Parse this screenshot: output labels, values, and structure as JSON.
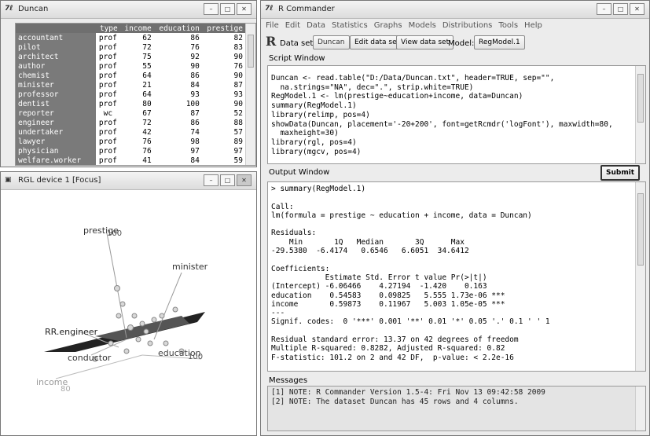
{
  "duncan_window": {
    "title": "Duncan",
    "columns": [
      "type",
      "income",
      "education",
      "prestige"
    ],
    "rows": [
      [
        "accountant",
        "prof",
        62,
        86,
        82
      ],
      [
        "pilot",
        "prof",
        72,
        76,
        83
      ],
      [
        "architect",
        "prof",
        75,
        92,
        90
      ],
      [
        "author",
        "prof",
        55,
        90,
        76
      ],
      [
        "chemist",
        "prof",
        64,
        86,
        90
      ],
      [
        "minister",
        "prof",
        21,
        84,
        87
      ],
      [
        "professor",
        "prof",
        64,
        93,
        93
      ],
      [
        "dentist",
        "prof",
        80,
        100,
        90
      ],
      [
        "reporter",
        "wc",
        67,
        87,
        52
      ],
      [
        "engineer",
        "prof",
        72,
        86,
        88
      ],
      [
        "undertaker",
        "prof",
        42,
        74,
        57
      ],
      [
        "lawyer",
        "prof",
        76,
        98,
        89
      ],
      [
        "physician",
        "prof",
        76,
        97,
        97
      ],
      [
        "welfare.worker",
        "prof",
        41,
        84,
        59
      ]
    ]
  },
  "rgl_window": {
    "title": "RGL device 1 [Focus]",
    "labels": [
      "prestige",
      "100",
      "minister",
      "RR.engineer",
      "conductor",
      "education",
      "100",
      "income",
      "80"
    ]
  },
  "rcmdr_window": {
    "title": "R Commander",
    "menu": [
      "File",
      "Edit",
      "Data",
      "Statistics",
      "Graphs",
      "Models",
      "Distributions",
      "Tools",
      "Help"
    ],
    "toolbar": {
      "data_set_label": "Data set:",
      "data_set": "Duncan",
      "edit_button": "Edit data set",
      "view_button": "View data set",
      "model_label": "Model:",
      "model": "RegModel.1"
    },
    "script_label": "Script Window",
    "script_lines": [
      "Duncan <- read.table(\"D:/Data/Duncan.txt\", header=TRUE, sep=\"\",",
      "  na.strings=\"NA\", dec=\".\", strip.white=TRUE)",
      "RegModel.1 <- lm(prestige~education+income, data=Duncan)",
      "summary(RegModel.1)",
      "library(relimp, pos=4)",
      "showData(Duncan, placement='-20+200', font=getRcmdr('logFont'), maxwidth=80,",
      "  maxheight=30)",
      "library(rgl, pos=4)",
      "library(mgcv, pos=4)"
    ],
    "output_label": "Output Window",
    "submit_button": "Submit",
    "output_blocks": [
      [
        "> summary(RegModel.1)"
      ],
      [
        "Call:",
        "lm(formula = prestige ~ education + income, data = Duncan)"
      ],
      [
        "Residuals:",
        "    Min       1Q   Median       3Q      Max",
        "-29.5380  -6.4174   0.6546   6.6051  34.6412"
      ],
      [
        "Coefficients:",
        "            Estimate Std. Error t value Pr(>|t|)",
        "(Intercept) -6.06466    4.27194  -1.420    0.163",
        "education    0.54583    0.09825   5.555 1.73e-06 ***",
        "income       0.59873    0.11967   5.003 1.05e-05 ***",
        "---",
        "Signif. codes:  0 '***' 0.001 '**' 0.01 '*' 0.05 '.' 0.1 ' ' 1"
      ],
      [
        "Residual standard error: 13.37 on 42 degrees of freedom",
        "Multiple R-squared: 0.8282, Adjusted R-squared: 0.82",
        "F-statistic: 101.2 on 2 and 42 DF,  p-value: < 2.2e-16"
      ]
    ],
    "messages_label": "Messages",
    "messages": [
      "[1] NOTE: R Commander Version 1.5-4: Fri Nov 13 09:42:58 2009",
      "[2] NOTE: The dataset Duncan has 45 rows and 4 columns."
    ]
  }
}
